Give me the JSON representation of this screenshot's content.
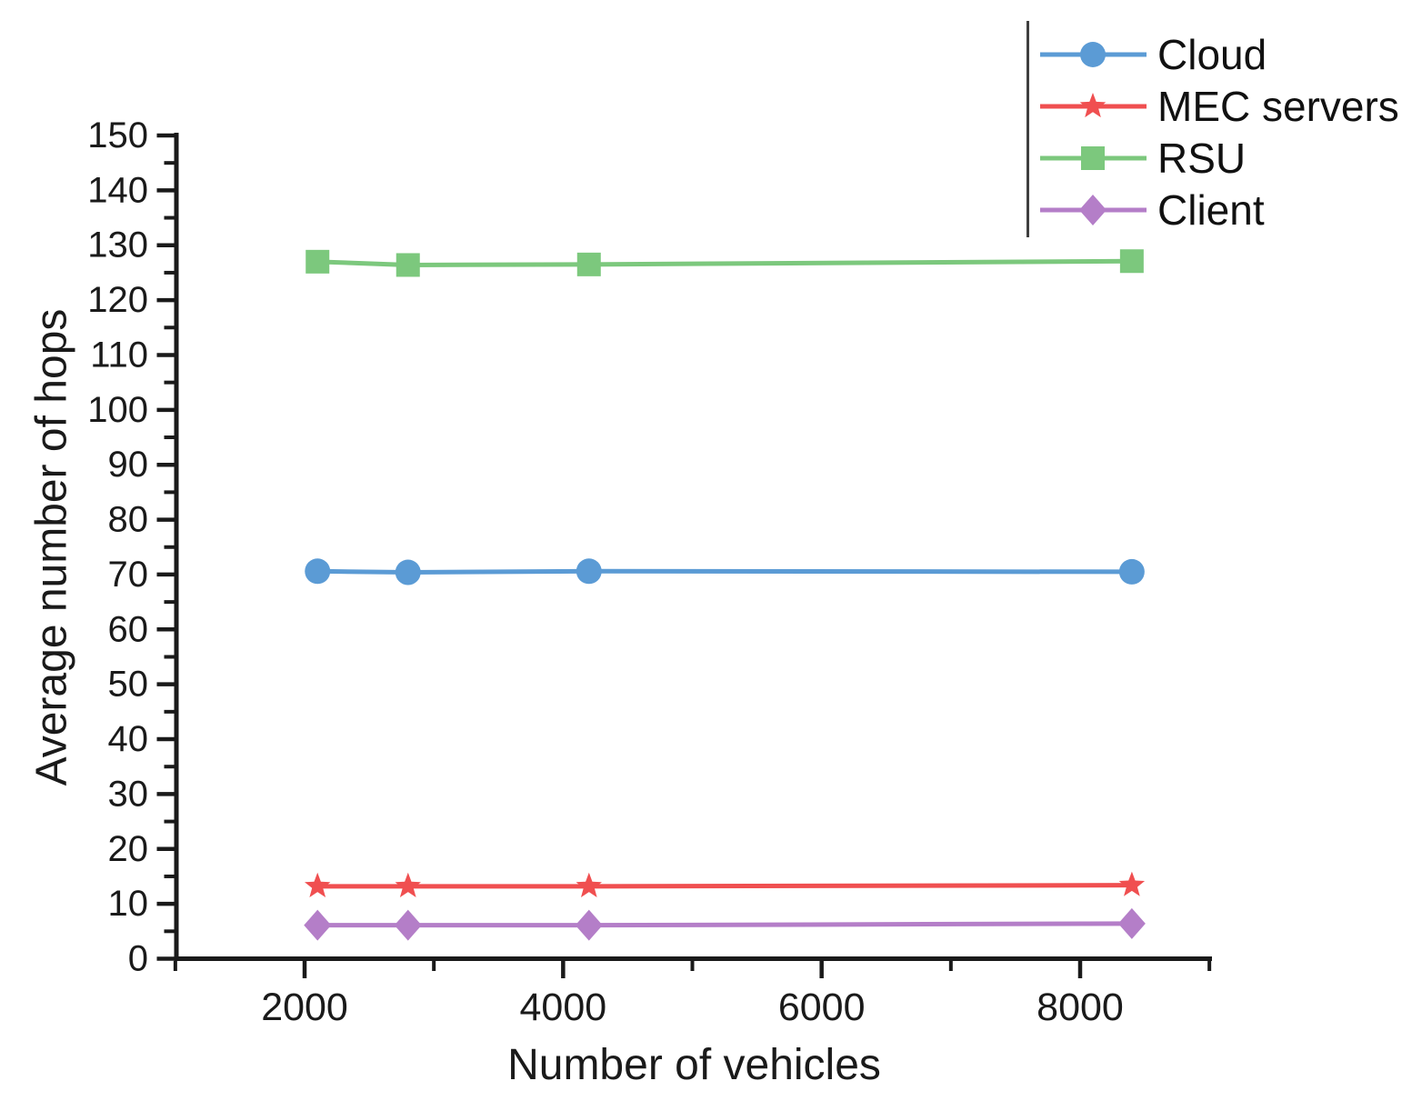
{
  "figure": {
    "background": "#ffffff",
    "axis_color": "#1a1a1a",
    "legend_border_color": "#3f3f3f"
  },
  "chart_data": {
    "type": "line",
    "title": "",
    "xlabel": "Number of vehicles",
    "ylabel": "Average number of hops",
    "x": [
      2100,
      2800,
      4200,
      8400
    ],
    "series": [
      {
        "name": "Cloud",
        "color": "#5B9BD5",
        "marker": "circle",
        "values": [
          70.6,
          70.4,
          70.6,
          70.5
        ]
      },
      {
        "name": "MEC servers",
        "color": "#F04F50",
        "marker": "star",
        "values": [
          13.2,
          13.2,
          13.2,
          13.4
        ]
      },
      {
        "name": "RSU",
        "color": "#7CC87D",
        "marker": "square",
        "values": [
          127.0,
          126.4,
          126.5,
          127.1
        ]
      },
      {
        "name": "Client",
        "color": "#B47EC8",
        "marker": "diamond",
        "values": [
          6.1,
          6.1,
          6.1,
          6.4
        ]
      }
    ],
    "xlim": [
      1008,
      9020
    ],
    "ylim": [
      0,
      150
    ],
    "x_ticks": {
      "major": [
        2000,
        4000,
        6000,
        8000
      ],
      "minor": [
        1000,
        3000,
        5000,
        7000,
        9000
      ]
    },
    "y_ticks": {
      "major": [
        0,
        10,
        20,
        30,
        40,
        50,
        60,
        70,
        80,
        90,
        100,
        110,
        120,
        130,
        140,
        150
      ],
      "minor": [
        5,
        15,
        25,
        35,
        45,
        55,
        65,
        75,
        85,
        95,
        105,
        115,
        125,
        135,
        145
      ]
    },
    "grid": false,
    "legend_position": "top-right"
  }
}
